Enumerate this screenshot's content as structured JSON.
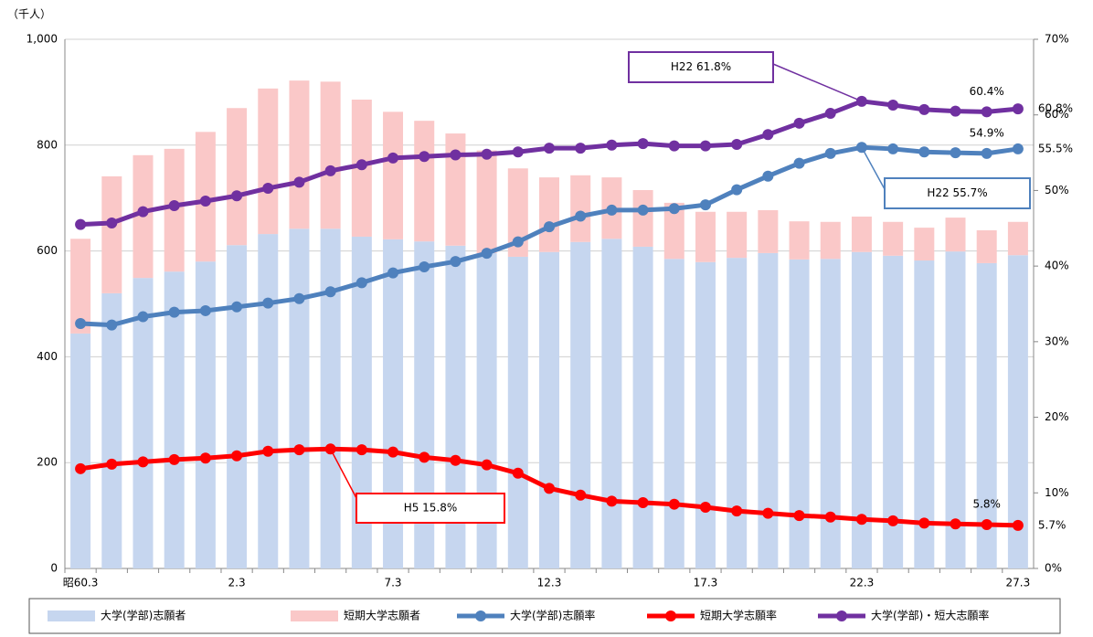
{
  "chart_data": {
    "type": "bar",
    "unit_label": "（千人）",
    "categories": [
      "昭60.3",
      null,
      null,
      null,
      null,
      "2.3",
      null,
      null,
      null,
      null,
      "7.3",
      null,
      null,
      null,
      null,
      "12.3",
      null,
      null,
      null,
      null,
      "17.3",
      null,
      null,
      null,
      null,
      "22.3",
      null,
      null,
      null,
      null,
      "27.3"
    ],
    "series": [
      {
        "name": "大学(学部)志願者",
        "type": "bar",
        "color": "#c6d6ef",
        "values": [
          444,
          520,
          549,
          561,
          580,
          611,
          632,
          642,
          642,
          627,
          622,
          618,
          610,
          596,
          589,
          598,
          617,
          623,
          608,
          585,
          579,
          587,
          596,
          584,
          585,
          598,
          591,
          582,
          599,
          577,
          592
        ]
      },
      {
        "name": "短期大学志願者",
        "type": "bar",
        "color": "#fac8c8",
        "values": [
          179,
          221,
          232,
          232,
          245,
          259,
          275,
          280,
          278,
          259,
          241,
          228,
          212,
          194,
          167,
          141,
          126,
          116,
          107,
          106,
          95,
          87,
          81,
          72,
          70,
          67,
          64,
          62,
          64,
          62,
          63
        ]
      },
      {
        "name": "大学(学部)志願率",
        "type": "line",
        "axis": "y2",
        "color": "#4f81bd",
        "values": [
          32.4,
          32.2,
          33.3,
          33.9,
          34.1,
          34.6,
          35.1,
          35.7,
          36.6,
          37.8,
          39.1,
          39.9,
          40.6,
          41.7,
          43.2,
          45.2,
          46.6,
          47.4,
          47.4,
          47.6,
          48.1,
          50.1,
          51.9,
          53.6,
          54.9,
          55.7,
          55.5,
          55.1,
          55.0,
          54.9,
          55.5
        ],
        "value_labels": [
          null,
          null,
          null,
          null,
          null,
          null,
          null,
          null,
          null,
          null,
          null,
          null,
          null,
          null,
          null,
          null,
          null,
          null,
          null,
          null,
          null,
          null,
          null,
          null,
          null,
          null,
          null,
          null,
          null,
          "54.9%",
          "55.5%"
        ]
      },
      {
        "name": "短期大学志願率",
        "type": "line",
        "axis": "y2",
        "color": "#ff0000",
        "values": [
          13.2,
          13.8,
          14.1,
          14.4,
          14.6,
          14.9,
          15.5,
          15.7,
          15.8,
          15.7,
          15.4,
          14.7,
          14.3,
          13.7,
          12.6,
          10.6,
          9.7,
          8.9,
          8.7,
          8.5,
          8.1,
          7.6,
          7.3,
          7.0,
          6.8,
          6.5,
          6.3,
          6.0,
          5.9,
          5.8,
          5.7
        ],
        "value_labels": [
          null,
          null,
          null,
          null,
          null,
          null,
          null,
          null,
          null,
          null,
          null,
          null,
          null,
          null,
          null,
          null,
          null,
          null,
          null,
          null,
          null,
          null,
          null,
          null,
          null,
          null,
          null,
          null,
          null,
          "5.8%",
          "5.7%"
        ]
      },
      {
        "name": "大学(学部)・短大志願率",
        "type": "line",
        "axis": "y2",
        "color": "#7030a0",
        "values": [
          45.5,
          45.7,
          47.2,
          48.0,
          48.6,
          49.3,
          50.3,
          51.1,
          52.6,
          53.4,
          54.3,
          54.5,
          54.7,
          54.8,
          55.1,
          55.6,
          55.6,
          56.0,
          56.2,
          55.9,
          55.9,
          56.1,
          57.4,
          58.9,
          60.2,
          61.8,
          61.3,
          60.7,
          60.5,
          60.4,
          60.8
        ],
        "value_labels": [
          null,
          null,
          null,
          null,
          null,
          null,
          null,
          null,
          null,
          null,
          null,
          null,
          null,
          null,
          null,
          null,
          null,
          null,
          null,
          null,
          null,
          null,
          null,
          null,
          null,
          null,
          null,
          null,
          null,
          "60.4%",
          "60.8%"
        ]
      }
    ],
    "annotations": [
      "H22 61.8%",
      "H22 55.7%",
      "H5 15.8%"
    ],
    "ylim": [
      0,
      1000
    ],
    "yticks": [
      0,
      200,
      400,
      600,
      800,
      {
        "value": 1000,
        "label": "1,000"
      }
    ],
    "y2lim": [
      0,
      70
    ],
    "y2ticks": [
      {
        "value": 0,
        "label": "0%"
      },
      {
        "value": 10,
        "label": "10%"
      },
      {
        "value": 20,
        "label": "20%"
      },
      {
        "value": 30,
        "label": "30%"
      },
      {
        "value": 40,
        "label": "40%"
      },
      {
        "value": 50,
        "label": "50%"
      },
      {
        "value": 60,
        "label": "60%"
      },
      {
        "value": 70,
        "label": "70%"
      }
    ],
    "grid": true
  }
}
